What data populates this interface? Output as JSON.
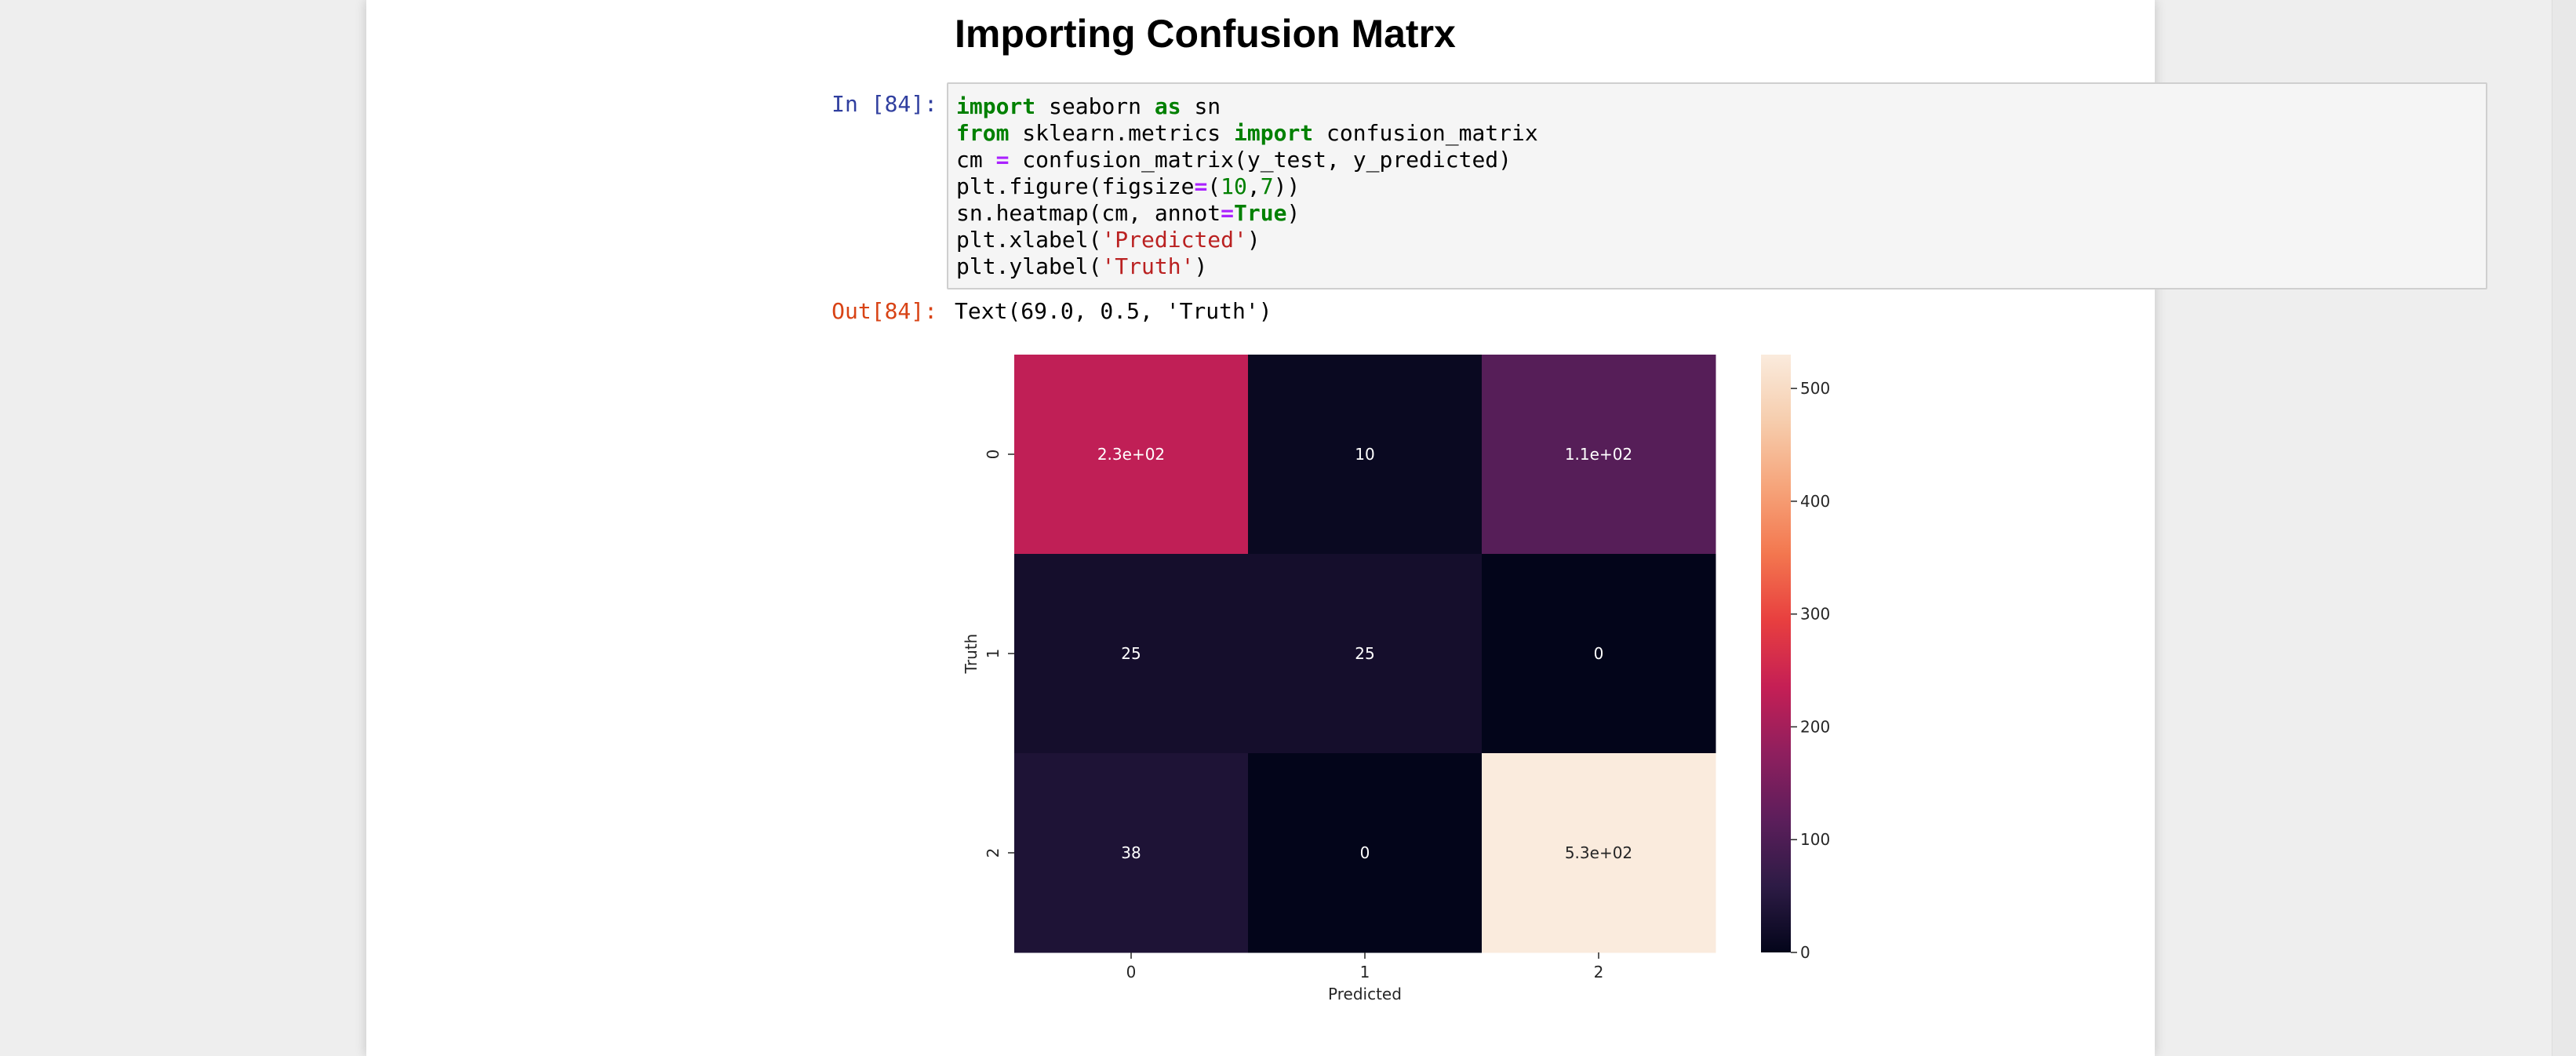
{
  "heading": "Importing Confusion Matrx",
  "input_prompt": "In [84]:",
  "output_prompt": "Out[84]:",
  "code_lines": [
    [
      {
        "t": "import",
        "c": "kw"
      },
      {
        "t": " seaborn "
      },
      {
        "t": "as",
        "c": "kw"
      },
      {
        "t": " sn"
      }
    ],
    [
      {
        "t": "from",
        "c": "kw"
      },
      {
        "t": " sklearn.metrics "
      },
      {
        "t": "import",
        "c": "kw"
      },
      {
        "t": " confusion_matrix"
      }
    ],
    [
      {
        "t": "cm "
      },
      {
        "t": "=",
        "c": "op"
      },
      {
        "t": " confusion_matrix(y_test, y_predicted)"
      }
    ],
    [
      {
        "t": "plt.figure(figsize"
      },
      {
        "t": "=",
        "c": "op"
      },
      {
        "t": "("
      },
      {
        "t": "10",
        "c": "num"
      },
      {
        "t": ","
      },
      {
        "t": "7",
        "c": "num"
      },
      {
        "t": "))"
      }
    ],
    [
      {
        "t": "sn.heatmap(cm, annot"
      },
      {
        "t": "=",
        "c": "op"
      },
      {
        "t": "True",
        "c": "kw"
      },
      {
        "t": ")"
      }
    ],
    [
      {
        "t": "plt.xlabel("
      },
      {
        "t": "'Predicted'",
        "c": "str"
      },
      {
        "t": ")"
      }
    ],
    [
      {
        "t": "plt.ylabel("
      },
      {
        "t": "'Truth'",
        "c": "str"
      },
      {
        "t": ")"
      }
    ]
  ],
  "output_text": "Text(69.0, 0.5, 'Truth')",
  "chart_data": {
    "type": "heatmap",
    "rows": [
      "0",
      "1",
      "2"
    ],
    "cols": [
      "0",
      "1",
      "2"
    ],
    "values": [
      [
        230,
        10,
        110
      ],
      [
        25,
        25,
        0
      ],
      [
        38,
        0,
        530
      ]
    ],
    "annotations": [
      [
        "2.3e+02",
        "10",
        "1.1e+02"
      ],
      [
        "25",
        "25",
        "0"
      ],
      [
        "38",
        "0",
        "5.3e+02"
      ]
    ],
    "xlabel": "Predicted",
    "ylabel": "Truth",
    "colorbar": {
      "min": 0,
      "max": 530,
      "ticks": [
        0,
        100,
        200,
        300,
        400,
        500
      ]
    },
    "colormap": "rocket",
    "colormap_stops": [
      "#03051a",
      "#2d1b45",
      "#5c1e5b",
      "#8f1f5e",
      "#c51f55",
      "#e83f3f",
      "#f3774f",
      "#f6a47a",
      "#f6cdad",
      "#faebdd"
    ]
  }
}
